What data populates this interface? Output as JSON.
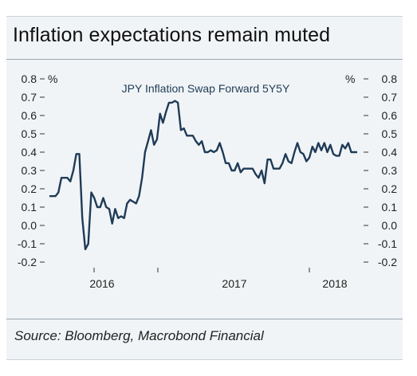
{
  "header": {
    "title": "Inflation expectations remain muted"
  },
  "footer": {
    "source": "Source: Bloomberg, Macrobond Financial"
  },
  "chart_data": {
    "type": "line",
    "title": "JPY Inflation Swap Forward 5Y5Y",
    "ylabel_left": "%",
    "ylabel_right": "%",
    "ylim": [
      -0.2,
      0.8
    ],
    "yticks": [
      "0.8",
      "0.7",
      "0.6",
      "0.5",
      "0.4",
      "0.3",
      "0.2",
      "0.1",
      "0.0",
      "-0.1",
      "-0.2"
    ],
    "xticks": [
      "2016",
      "2017",
      "2018"
    ],
    "grid": false,
    "series": [
      {
        "name": "JPY Inflation Swap Forward 5Y5Y",
        "color": "#1f3b57",
        "values": [
          0.16,
          0.16,
          0.16,
          0.18,
          0.26,
          0.26,
          0.26,
          0.24,
          0.3,
          0.39,
          0.39,
          0.04,
          -0.13,
          -0.1,
          0.18,
          0.15,
          0.1,
          0.1,
          0.15,
          0.1,
          0.09,
          0.01,
          0.09,
          0.04,
          0.05,
          0.04,
          0.12,
          0.14,
          0.13,
          0.12,
          0.16,
          0.26,
          0.4,
          0.46,
          0.52,
          0.44,
          0.47,
          0.61,
          0.56,
          0.62,
          0.67,
          0.67,
          0.68,
          0.67,
          0.52,
          0.53,
          0.49,
          0.49,
          0.49,
          0.46,
          0.44,
          0.46,
          0.4,
          0.4,
          0.41,
          0.4,
          0.41,
          0.45,
          0.4,
          0.34,
          0.34,
          0.3,
          0.3,
          0.34,
          0.29,
          0.31,
          0.31,
          0.31,
          0.31,
          0.28,
          0.26,
          0.3,
          0.23,
          0.36,
          0.36,
          0.31,
          0.31,
          0.31,
          0.34,
          0.39,
          0.35,
          0.34,
          0.4,
          0.45,
          0.4,
          0.39,
          0.35,
          0.37,
          0.43,
          0.4,
          0.45,
          0.41,
          0.45,
          0.4,
          0.44,
          0.39,
          0.38,
          0.38,
          0.44,
          0.42,
          0.45,
          0.4,
          0.4,
          0.4
        ]
      }
    ]
  }
}
